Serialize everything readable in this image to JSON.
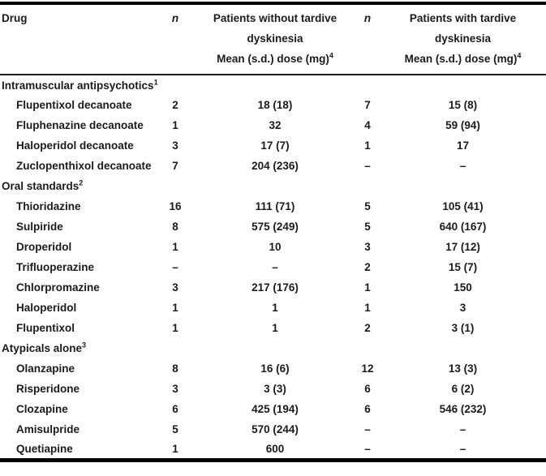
{
  "header": {
    "drug": "Drug",
    "n_without": "n",
    "n_with": "n",
    "without_line1": "Patients without tardive",
    "without_line2": "dyskinesia",
    "without_line3": "Mean (s.d.) dose (mg)",
    "without_sup": "4",
    "with_line1": "Patients with tardive",
    "with_line2": "dyskinesia",
    "with_line3": "Mean (s.d.) dose (mg)",
    "with_sup": "4"
  },
  "sections": [
    {
      "label": "Intramuscular antipsychotics",
      "sup": "1",
      "rows": [
        {
          "drug": "Flupentixol decanoate",
          "n_without": "2",
          "dose_without": "18 (18)",
          "n_with": "7",
          "dose_with": "15 (8)"
        },
        {
          "drug": "Fluphenazine decanoate",
          "n_without": "1",
          "dose_without": "32",
          "n_with": "4",
          "dose_with": "59 (94)"
        },
        {
          "drug": "Haloperidol decanoate",
          "n_without": "3",
          "dose_without": "17 (7)",
          "n_with": "1",
          "dose_with": "17"
        },
        {
          "drug": "Zuclopenthixol decanoate",
          "n_without": "7",
          "dose_without": "204 (236)",
          "n_with": "–",
          "dose_with": "–"
        }
      ]
    },
    {
      "label": "Oral standards",
      "sup": "2",
      "rows": [
        {
          "drug": "Thioridazine",
          "n_without": "16",
          "dose_without": "111 (71)",
          "n_with": "5",
          "dose_with": "105 (41)"
        },
        {
          "drug": "Sulpiride",
          "n_without": "8",
          "dose_without": "575 (249)",
          "n_with": "5",
          "dose_with": "640 (167)"
        },
        {
          "drug": "Droperidol",
          "n_without": "1",
          "dose_without": "10",
          "n_with": "3",
          "dose_with": "17 (12)"
        },
        {
          "drug": "Trifluoperazine",
          "n_without": "–",
          "dose_without": "–",
          "n_with": "2",
          "dose_with": "15 (7)"
        },
        {
          "drug": "Chlorpromazine",
          "n_without": "3",
          "dose_without": "217 (176)",
          "n_with": "1",
          "dose_with": "150"
        },
        {
          "drug": "Haloperidol",
          "n_without": "1",
          "dose_without": "1",
          "n_with": "1",
          "dose_with": "3"
        },
        {
          "drug": "Flupentixol",
          "n_without": "1",
          "dose_without": "1",
          "n_with": "2",
          "dose_with": "3 (1)"
        }
      ]
    },
    {
      "label": "Atypicals alone",
      "sup": "3",
      "rows": [
        {
          "drug": "Olanzapine",
          "n_without": "8",
          "dose_without": "16 (6)",
          "n_with": "12",
          "dose_with": "13 (3)"
        },
        {
          "drug": "Risperidone",
          "n_without": "3",
          "dose_without": "3 (3)",
          "n_with": "6",
          "dose_with": "6 (2)"
        },
        {
          "drug": "Clozapine",
          "n_without": "6",
          "dose_without": "425 (194)",
          "n_with": "6",
          "dose_with": "546 (232)"
        },
        {
          "drug": "Amisulpride",
          "n_without": "5",
          "dose_without": "570 (244)",
          "n_with": "–",
          "dose_with": "–"
        },
        {
          "drug": "Quetiapine",
          "n_without": "1",
          "dose_without": "600",
          "n_with": "–",
          "dose_with": "–"
        }
      ]
    }
  ]
}
